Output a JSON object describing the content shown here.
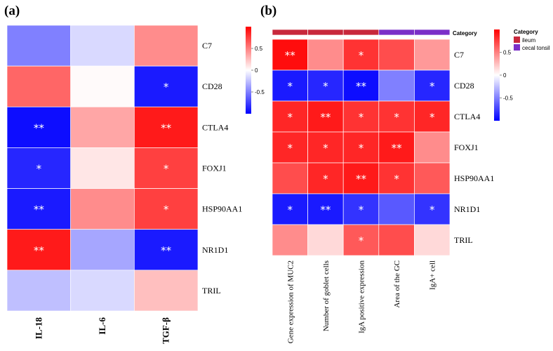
{
  "colors": {
    "neg": "#0000ff",
    "mid": "#ffffff",
    "pos": "#ff0000",
    "ileum": "#c8283c",
    "cecal": "#7b2fc8"
  },
  "chart_data": [
    {
      "panel": "(a)",
      "type": "heatmap",
      "rows": [
        "C7",
        "CD28",
        "CTLA4",
        "FOXJ1",
        "HSP90AA1",
        "NR1D1",
        "TRIL"
      ],
      "columns": [
        "IL-18",
        "IL-6",
        "TGF-β"
      ],
      "values": [
        [
          -0.5,
          -0.15,
          0.45
        ],
        [
          0.6,
          0.02,
          -0.9
        ],
        [
          -0.95,
          0.35,
          0.9
        ],
        [
          -0.85,
          0.1,
          0.75
        ],
        [
          -0.9,
          0.45,
          0.75
        ],
        [
          0.9,
          -0.35,
          -0.9
        ],
        [
          -0.25,
          -0.15,
          0.25
        ]
      ],
      "stars": [
        [
          "",
          "",
          ""
        ],
        [
          "",
          "",
          "*"
        ],
        [
          "**",
          "",
          "**"
        ],
        [
          "*",
          "",
          "*"
        ],
        [
          "**",
          "",
          "*"
        ],
        [
          "**",
          "",
          "**"
        ],
        [
          "",
          "",
          ""
        ]
      ],
      "colorbar": {
        "min": -1,
        "max": 1,
        "ticks": [
          {
            "v": 0.5,
            "label": "0.5"
          },
          {
            "v": 0,
            "label": "0"
          },
          {
            "v": -0.5,
            "label": "-0.5"
          }
        ]
      }
    },
    {
      "panel": "(b)",
      "type": "heatmap",
      "rows": [
        "C7",
        "CD28",
        "CTLA4",
        "FOXJ1",
        "HSP90AA1",
        "NR1D1",
        "TRIL"
      ],
      "columns": [
        "Gene expression of MUC2",
        "Number of goblet cells",
        "IgA positive expression",
        "Area of the GC",
        "IgA+ cell"
      ],
      "categories": [
        "ileum",
        "ileum",
        "ileum",
        "cecal tonsil",
        "cecal tonsil"
      ],
      "values": [
        [
          0.95,
          0.45,
          0.8,
          0.7,
          0.4
        ],
        [
          -0.9,
          -0.85,
          -0.95,
          -0.5,
          -0.85
        ],
        [
          0.85,
          0.9,
          0.8,
          0.8,
          0.85
        ],
        [
          0.85,
          0.85,
          0.85,
          0.9,
          0.45
        ],
        [
          0.7,
          0.85,
          0.9,
          0.8,
          0.65
        ],
        [
          -0.9,
          -0.9,
          -0.8,
          -0.65,
          -0.8
        ],
        [
          0.45,
          0.15,
          0.65,
          0.7,
          0.15
        ]
      ],
      "stars": [
        [
          "**",
          "",
          "*",
          "",
          ""
        ],
        [
          "*",
          "*",
          "**",
          "",
          "*"
        ],
        [
          "*",
          "**",
          "*",
          "*",
          "*"
        ],
        [
          "*",
          "*",
          "*",
          "**",
          ""
        ],
        [
          "",
          "*",
          "**",
          "*",
          ""
        ],
        [
          "*",
          "**",
          "*",
          "",
          "*"
        ],
        [
          "",
          "",
          "*",
          "",
          ""
        ]
      ],
      "category_title": "Category",
      "legend_title": "Category",
      "legend_items": [
        "ileum",
        "cecal tonsil"
      ],
      "colorbar": {
        "min": -1,
        "max": 1,
        "ticks": [
          {
            "v": 0.5,
            "label": "0.5"
          },
          {
            "v": 0,
            "label": "0"
          },
          {
            "v": -0.5,
            "label": "-0.5"
          }
        ]
      }
    }
  ]
}
